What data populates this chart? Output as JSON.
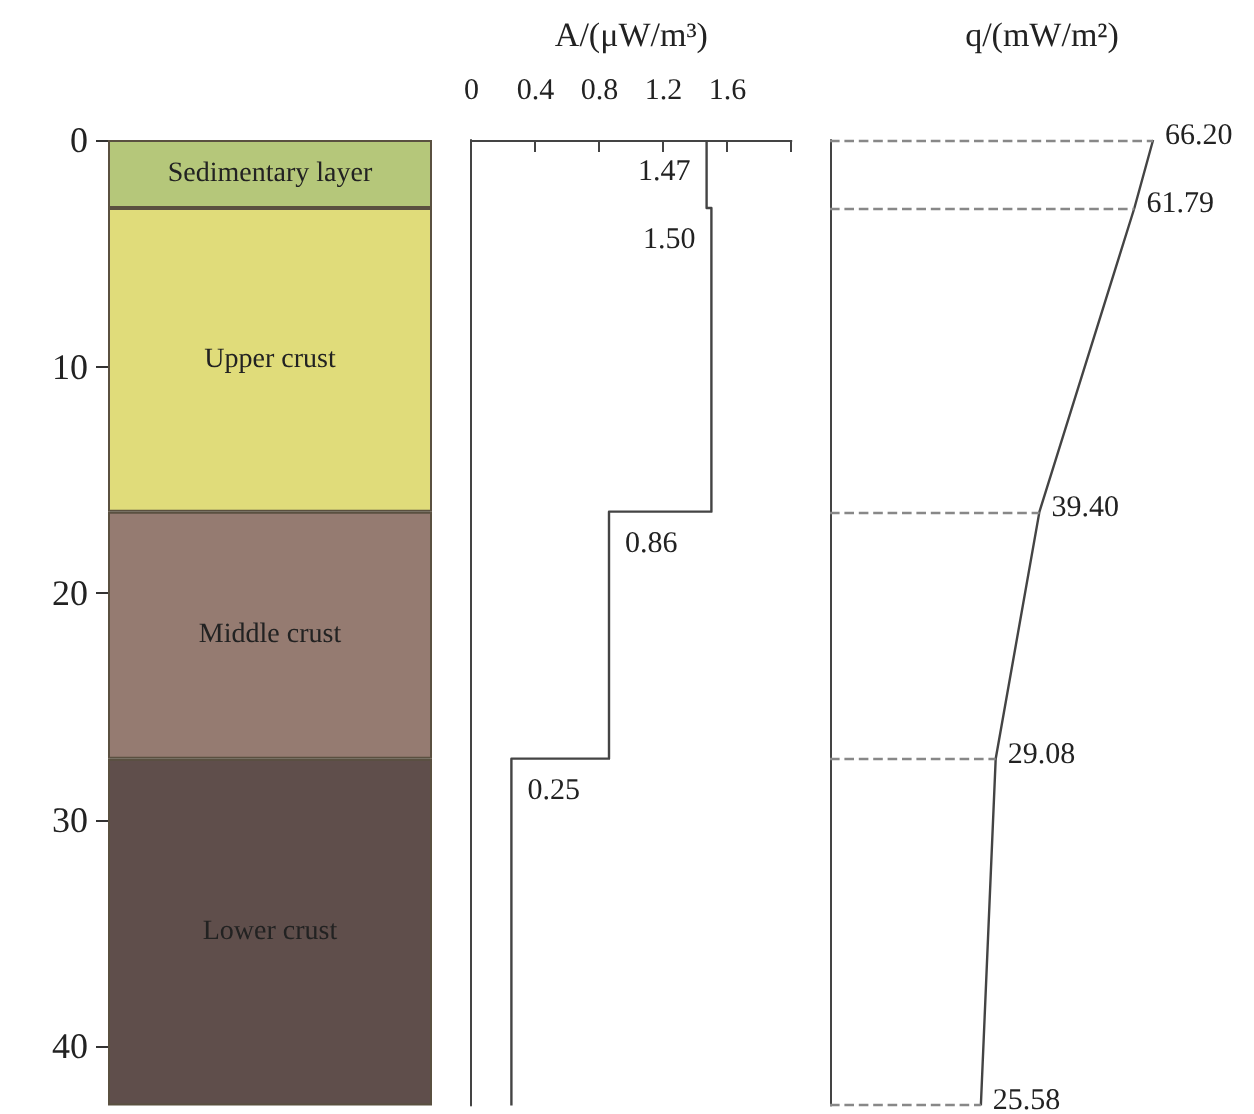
{
  "chart_data": [
    {
      "type": "bar",
      "stacked": true,
      "categories": [
        null
      ],
      "ylim": [
        42.6,
        0
      ],
      "yticks": [
        0,
        10,
        20,
        30,
        40
      ],
      "tick_labels": "y",
      "grid": false,
      "series": [
        {
          "name": "Sedimentary layer",
          "color": "#b5c77a",
          "values": [
            3
          ]
        },
        {
          "name": "Upper crust",
          "color": "#e0dc7a",
          "values": [
            13.4
          ]
        },
        {
          "name": "Middle crust",
          "color": "#957b71",
          "values": [
            10.9
          ]
        },
        {
          "name": "Lower crust",
          "color": "#5f4e4b",
          "values": [
            15.3
          ]
        }
      ]
    },
    {
      "type": "step",
      "orientation": "horizontal",
      "xlabel": "A/(μW/m³)",
      "xlim": [
        0,
        2
      ],
      "xticks": [
        0,
        0.4,
        0.8,
        1.2,
        1.6,
        {
          "value": 2,
          "label": null
        }
      ],
      "ylim": [
        42.6,
        0
      ],
      "yticks": [
        0,
        10,
        20,
        30,
        40
      ],
      "tick_labels": "x",
      "grid": false,
      "marker": "none",
      "series": [
        {
          "color": "#444444",
          "x": [
            0,
            3,
            16.4,
            27.3,
            42.6
          ],
          "values": [
            1.47,
            1.5,
            0.86,
            0.25,
            0.25
          ],
          "value_labels": [
            "1.47",
            "1.50",
            "0.86",
            "0.25",
            null
          ]
        }
      ]
    },
    {
      "type": "line",
      "orientation": "horizontal",
      "xlabel": "q/(mW/m²)",
      "xlim": [
        -10,
        90
      ],
      "ylim": [
        42.6,
        0
      ],
      "yticks": [
        0,
        10,
        20,
        30,
        40
      ],
      "tick_labels": false,
      "grid": false,
      "marker": "none",
      "series": [
        {
          "color": "#444444",
          "x": [
            0,
            3,
            16.4,
            27.3,
            42.6
          ],
          "values": [
            66.2,
            61.79,
            39.4,
            29.08,
            25.58
          ],
          "value_labels": [
            "66.20",
            "61.79",
            "39.40",
            "29.08",
            "25.58"
          ]
        }
      ],
      "ref_lines": [
        {
          "axis": "y",
          "value": 0,
          "color": "#888888",
          "line_style": "dashed"
        },
        {
          "axis": "y",
          "value": 3,
          "color": "#888888",
          "line_style": "dashed"
        },
        {
          "axis": "y",
          "value": 16.4,
          "color": "#888888",
          "line_style": "dashed"
        },
        {
          "axis": "y",
          "value": 27.3,
          "color": "#888888",
          "line_style": "dashed"
        },
        {
          "axis": "y",
          "value": 42.6,
          "color": "#888888",
          "line_style": "dashed"
        }
      ]
    }
  ]
}
